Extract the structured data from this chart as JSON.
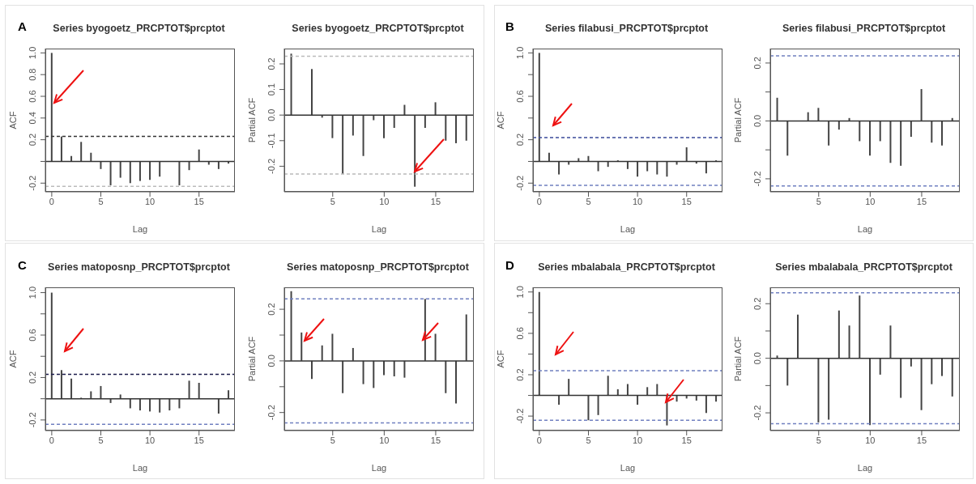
{
  "chart_data": [
    {
      "type": "bar",
      "title": "Series  byogoetz_PRCPTOT$prcptot",
      "xlabel": "Lag",
      "ylabel": "ACF",
      "annotations": [
        "A"
      ],
      "x": [
        0,
        1,
        2,
        3,
        4,
        5,
        6,
        7,
        8,
        9,
        10,
        11,
        12,
        13,
        14,
        15,
        16,
        17,
        18
      ],
      "series": [
        {
          "color": "#444444",
          "values": [
            1.0,
            0.23,
            0.05,
            0.18,
            0.08,
            -0.07,
            -0.22,
            -0.15,
            -0.2,
            -0.18,
            -0.17,
            -0.14,
            0.0,
            -0.22,
            -0.08,
            0.11,
            -0.03,
            -0.07,
            -0.02
          ]
        }
      ],
      "xlim": [
        -0.65,
        18.65
      ],
      "xticks": [
        0,
        5,
        10,
        15
      ],
      "ylim": [
        -0.28,
        1.04
      ],
      "yticks": [
        -0.2,
        {
          "value": 0,
          "label": null
        },
        0.2,
        0.4,
        0.6,
        0.8,
        {
          "value": 1,
          "label": "1.0"
        }
      ],
      "ref_lines": [
        {
          "axis": "y",
          "value": 0.23,
          "color": "#333333",
          "line_style": "dashed"
        },
        {
          "axis": "y",
          "value": -0.23,
          "color": "#bbbbbb",
          "line_style": "dashed"
        }
      ]
    },
    {
      "type": "bar",
      "title": "Series  byogoetz_PRCPTOT$prcptot",
      "xlabel": "Lag",
      "ylabel": "Partial ACF",
      "x": [
        1,
        2,
        3,
        4,
        5,
        6,
        7,
        8,
        9,
        10,
        11,
        12,
        13,
        14,
        15,
        16,
        17,
        18
      ],
      "series": [
        {
          "color": "#444444",
          "values": [
            0.24,
            0.0,
            0.18,
            -0.01,
            -0.09,
            -0.23,
            -0.08,
            -0.16,
            -0.02,
            -0.09,
            -0.05,
            0.04,
            -0.28,
            -0.05,
            0.05,
            -0.1,
            -0.11,
            -0.1
          ]
        }
      ],
      "xlim": [
        0.3,
        18.7
      ],
      "xticks": [
        5,
        10,
        15
      ],
      "ylim": [
        -0.3,
        0.26
      ],
      "yticks": [
        -0.2,
        -0.1,
        {
          "value": 0,
          "label": "0.0"
        },
        0.1,
        0.2
      ],
      "ref_lines": [
        {
          "axis": "y",
          "value": 0.23,
          "color": "#bbbbbb",
          "line_style": "dashed"
        },
        {
          "axis": "y",
          "value": -0.23,
          "color": "#bbbbbb",
          "line_style": "dashed"
        }
      ]
    },
    {
      "type": "bar",
      "title": "Series  filabusi_PRCPTOT$prcptot",
      "xlabel": "Lag",
      "ylabel": "ACF",
      "annotations": [
        "B"
      ],
      "x": [
        0,
        1,
        2,
        3,
        4,
        5,
        6,
        7,
        8,
        9,
        10,
        11,
        12,
        13,
        14,
        15,
        16,
        17,
        18
      ],
      "series": [
        {
          "color": "#444444",
          "values": [
            1.0,
            0.08,
            -0.12,
            -0.03,
            0.03,
            0.05,
            -0.09,
            -0.05,
            0.01,
            -0.07,
            -0.14,
            -0.09,
            -0.12,
            -0.14,
            -0.03,
            0.13,
            -0.02,
            -0.11,
            0.01
          ]
        }
      ],
      "xlim": [
        -0.65,
        18.65
      ],
      "xticks": [
        0,
        5,
        10,
        15
      ],
      "ylim": [
        -0.28,
        1.04
      ],
      "yticks": [
        -0.2,
        {
          "value": 0,
          "label": null
        },
        0.2,
        {
          "value": 0.4,
          "label": null
        },
        0.6,
        {
          "value": 0.8,
          "label": null
        },
        {
          "value": 1,
          "label": "1.0"
        }
      ],
      "ref_lines": [
        {
          "axis": "y",
          "value": 0.22,
          "color": "#3a4a9a",
          "line_style": "dashed"
        },
        {
          "axis": "y",
          "value": -0.22,
          "color": "#7080c0",
          "line_style": "dashed"
        }
      ]
    },
    {
      "type": "bar",
      "title": "Series  filabusi_PRCPTOT$prcptot",
      "xlabel": "Lag",
      "ylabel": "Partial ACF",
      "x": [
        1,
        2,
        3,
        4,
        5,
        6,
        7,
        8,
        9,
        10,
        11,
        12,
        13,
        14,
        15,
        16,
        17,
        18
      ],
      "series": [
        {
          "color": "#444444",
          "values": [
            0.08,
            -0.12,
            0.0,
            0.03,
            0.045,
            -0.085,
            -0.03,
            0.01,
            -0.07,
            -0.12,
            -0.07,
            -0.145,
            -0.155,
            -0.055,
            0.11,
            -0.075,
            -0.085,
            0.01
          ]
        }
      ],
      "xlim": [
        0.3,
        18.7
      ],
      "xticks": [
        5,
        10,
        15
      ],
      "ylim": [
        -0.245,
        0.25
      ],
      "yticks": [
        -0.2,
        {
          "value": -0.1,
          "label": null
        },
        {
          "value": 0,
          "label": "0.0"
        },
        {
          "value": 0.1,
          "label": null
        },
        0.2
      ],
      "ref_lines": [
        {
          "axis": "y",
          "value": 0.225,
          "color": "#7080c0",
          "line_style": "dashed"
        },
        {
          "axis": "y",
          "value": -0.225,
          "color": "#7080c0",
          "line_style": "dashed"
        }
      ]
    },
    {
      "type": "bar",
      "title": "Series  matoposnp_PRCPTOT$prcptot",
      "xlabel": "Lag",
      "ylabel": "ACF",
      "annotations": [
        "C"
      ],
      "x": [
        0,
        1,
        2,
        3,
        4,
        5,
        6,
        7,
        8,
        9,
        10,
        11,
        12,
        13,
        14,
        15,
        16,
        17,
        18
      ],
      "series": [
        {
          "color": "#444444",
          "values": [
            1.0,
            0.27,
            0.19,
            0.01,
            0.07,
            0.12,
            -0.04,
            0.04,
            -0.09,
            -0.11,
            -0.12,
            -0.13,
            -0.11,
            -0.09,
            0.17,
            0.15,
            0.0,
            -0.14,
            0.08
          ]
        }
      ],
      "xlim": [
        -0.65,
        18.65
      ],
      "xticks": [
        0,
        5,
        10,
        15
      ],
      "ylim": [
        -0.3,
        1.05
      ],
      "yticks": [
        -0.2,
        {
          "value": 0,
          "label": null
        },
        0.2,
        {
          "value": 0.4,
          "label": null
        },
        0.6,
        {
          "value": 0.8,
          "label": null
        },
        {
          "value": 1,
          "label": "1.0"
        }
      ],
      "ref_lines": [
        {
          "axis": "y",
          "value": 0.23,
          "color": "#1a1a4a",
          "line_style": "dashed"
        },
        {
          "axis": "y",
          "value": -0.24,
          "color": "#7080c0",
          "line_style": "dashed"
        }
      ]
    },
    {
      "type": "bar",
      "title": "Series  matoposnp_PRCPTOT$prcptot",
      "xlabel": "Lag",
      "ylabel": "Partial ACF",
      "x": [
        1,
        2,
        3,
        4,
        5,
        6,
        7,
        8,
        9,
        10,
        11,
        12,
        13,
        14,
        15,
        16,
        17,
        18
      ],
      "series": [
        {
          "color": "#444444",
          "values": [
            0.27,
            0.11,
            -0.07,
            0.06,
            0.105,
            -0.125,
            0.05,
            -0.09,
            -0.105,
            -0.055,
            -0.06,
            -0.065,
            0.0,
            0.24,
            0.105,
            -0.125,
            -0.165,
            0.18
          ]
        }
      ],
      "xlim": [
        0.3,
        18.7
      ],
      "xticks": [
        5,
        10,
        15
      ],
      "ylim": [
        -0.27,
        0.285
      ],
      "yticks": [
        -0.2,
        {
          "value": -0.1,
          "label": null
        },
        {
          "value": 0,
          "label": "0.0"
        },
        {
          "value": 0.1,
          "label": null
        },
        0.2
      ],
      "ref_lines": [
        {
          "axis": "y",
          "value": 0.24,
          "color": "#7080c0",
          "line_style": "dashed"
        },
        {
          "axis": "y",
          "value": -0.24,
          "color": "#7080c0",
          "line_style": "dashed"
        }
      ]
    },
    {
      "type": "bar",
      "title": "Series  mbalabala_PRCPTOT$prcptot",
      "xlabel": "Lag",
      "ylabel": "ACF",
      "annotations": [
        "D"
      ],
      "x": [
        0,
        1,
        2,
        3,
        4,
        5,
        6,
        7,
        8,
        9,
        10,
        11,
        12,
        13,
        14,
        15,
        16,
        17,
        18
      ],
      "series": [
        {
          "color": "#444444",
          "values": [
            1.0,
            0.0,
            -0.09,
            0.16,
            0.0,
            -0.24,
            -0.19,
            0.19,
            0.06,
            0.11,
            -0.09,
            0.08,
            0.11,
            -0.29,
            -0.06,
            -0.03,
            -0.05,
            -0.17,
            -0.06
          ]
        }
      ],
      "xlim": [
        -0.65,
        18.65
      ],
      "xticks": [
        0,
        5,
        10,
        15
      ],
      "ylim": [
        -0.34,
        1.045
      ],
      "yticks": [
        -0.2,
        {
          "value": 0,
          "label": null
        },
        0.2,
        {
          "value": 0.4,
          "label": null
        },
        0.6,
        {
          "value": 0.8,
          "label": null
        },
        {
          "value": 1,
          "label": "1.0"
        }
      ],
      "ref_lines": [
        {
          "axis": "y",
          "value": 0.24,
          "color": "#7080c0",
          "line_style": "dashed"
        },
        {
          "axis": "y",
          "value": -0.24,
          "color": "#7080c0",
          "line_style": "dashed"
        }
      ]
    },
    {
      "type": "bar",
      "title": "Series  mbalabala_PRCPTOT$prcptot",
      "xlabel": "Lag",
      "ylabel": "Partial ACF",
      "x": [
        1,
        2,
        3,
        4,
        5,
        6,
        7,
        8,
        9,
        10,
        11,
        12,
        13,
        14,
        15,
        16,
        17,
        18
      ],
      "series": [
        {
          "color": "#444444",
          "values": [
            0.01,
            -0.1,
            0.16,
            0.0,
            -0.235,
            -0.225,
            0.175,
            0.12,
            0.23,
            -0.245,
            -0.06,
            0.12,
            -0.145,
            -0.03,
            -0.19,
            -0.095,
            -0.065,
            -0.14
          ]
        }
      ],
      "xlim": [
        0.3,
        18.7
      ],
      "xticks": [
        5,
        10,
        15
      ],
      "ylim": [
        -0.265,
        0.26
      ],
      "yticks": [
        -0.2,
        {
          "value": -0.1,
          "label": null
        },
        {
          "value": 0,
          "label": "0.0"
        },
        {
          "value": 0.1,
          "label": null
        },
        0.2
      ],
      "ref_lines": [
        {
          "axis": "y",
          "value": 0.24,
          "color": "#7080c0",
          "line_style": "dashed"
        },
        {
          "axis": "y",
          "value": -0.24,
          "color": "#7080c0",
          "line_style": "dashed"
        }
      ]
    }
  ]
}
